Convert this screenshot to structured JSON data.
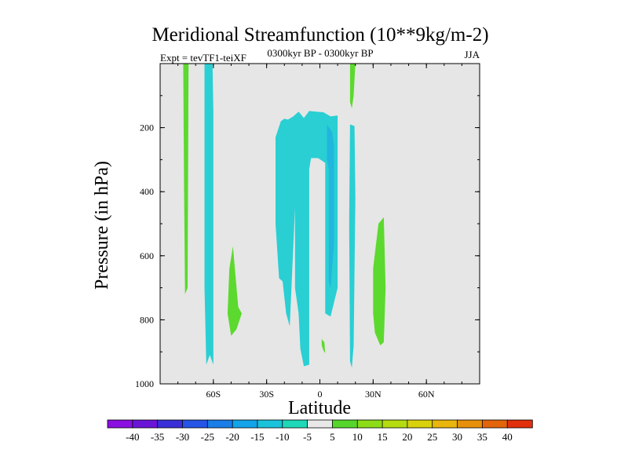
{
  "chart_data": {
    "type": "heatmap",
    "title": "Meridional Streamfunction (10**9kg/m-2)",
    "expt_label": "Expt = tevTF1-teiXF",
    "period_label": "0300kyr BP - 0300kyr BP",
    "season_label": "JJA",
    "xlabel": "Latitude",
    "ylabel": "Pressure (in hPa)",
    "xlim": [
      -90,
      90
    ],
    "ylim": [
      1000,
      0
    ],
    "x_ticks": [
      {
        "value": -60,
        "label": "60S"
      },
      {
        "value": -30,
        "label": "30S"
      },
      {
        "value": 0,
        "label": "0"
      },
      {
        "value": 30,
        "label": "30N"
      },
      {
        "value": 60,
        "label": "60N"
      }
    ],
    "y_ticks": [
      {
        "value": 200,
        "label": "200"
      },
      {
        "value": 400,
        "label": "400"
      },
      {
        "value": 600,
        "label": "600"
      },
      {
        "value": 800,
        "label": "800"
      },
      {
        "value": 1000,
        "label": "1000"
      }
    ],
    "background_color": "#e6e6e6",
    "colorbar": {
      "labels": [
        "-40",
        "-35",
        "-30",
        "-25",
        "-20",
        "-15",
        "-10",
        "-5",
        "5",
        "10",
        "15",
        "20",
        "25",
        "30",
        "35",
        "40"
      ],
      "colors": [
        "#8a0fe0",
        "#6a14d8",
        "#3a2ed8",
        "#2455e6",
        "#1a7de8",
        "#12a3e8",
        "#1bc3da",
        "#1ed8b8",
        "#e8e8e8",
        "#56d62c",
        "#8cdc18",
        "#b4dc10",
        "#d8d20c",
        "#e8b60c",
        "#e6900c",
        "#e4640c",
        "#e0300c"
      ]
    },
    "regions": [
      {
        "value_class": "-10",
        "color": "#29cfd3",
        "lat_range": [
          -65,
          -60
        ],
        "p_range": [
          0,
          940
        ],
        "desc": "southern high-latitude column"
      },
      {
        "value_class": "-10",
        "color": "#29cfd3",
        "lat_range": [
          -25,
          10
        ],
        "p_range": [
          145,
          945
        ],
        "desc": "tropical negative cell"
      },
      {
        "value_class": "-15",
        "color": "#20b6de",
        "lat_range": [
          -12,
          10
        ],
        "p_range": [
          190,
          740
        ],
        "desc": "tropical core"
      },
      {
        "value_class": "-10",
        "color": "#29cfd3",
        "lat_range": [
          17,
          20
        ],
        "p_range": [
          190,
          950
        ],
        "desc": "northern subtropical column"
      },
      {
        "value_class": "5",
        "color": "#5cd92e",
        "lat_range": [
          -77,
          -74
        ],
        "p_range": [
          0,
          720
        ],
        "desc": "southern polar positive"
      },
      {
        "value_class": "5",
        "color": "#5cd92e",
        "lat_range": [
          -52,
          -45
        ],
        "p_range": [
          570,
          850
        ],
        "desc": "southern midlatitude positive"
      },
      {
        "value_class": "5",
        "color": "#5cd92e",
        "lat_range": [
          30,
          37
        ],
        "p_range": [
          480,
          880
        ],
        "desc": "northern positive"
      },
      {
        "value_class": "5",
        "color": "#5cd92e",
        "lat_range": [
          17,
          20
        ],
        "p_range": [
          0,
          140
        ],
        "desc": "northern upper positive"
      },
      {
        "value_class": "5",
        "color": "#5cd92e",
        "lat_range": [
          1,
          3
        ],
        "p_range": [
          860,
          905
        ],
        "desc": "equatorial low-level positive"
      }
    ]
  }
}
